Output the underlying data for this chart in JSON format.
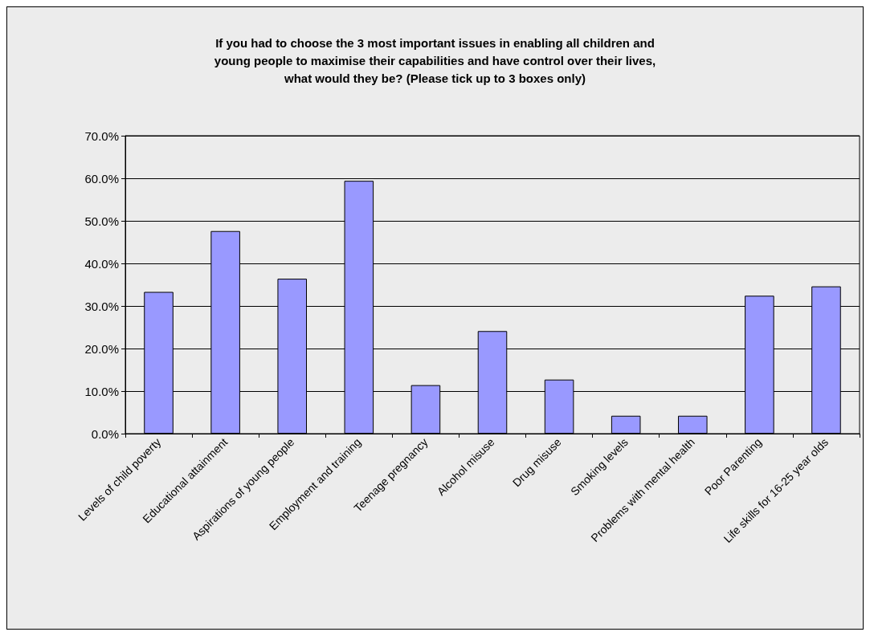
{
  "chart_data": {
    "type": "bar",
    "title": "If you had to choose the 3 most important issues in enabling all children and\nyoung people to maximise their capabilities and have control over their lives,\nwhat would they be? (Please tick up to 3 boxes only)",
    "categories": [
      "Levels of child poverty",
      "Educational attainment",
      "Aspirations of young people",
      "Employment and training",
      "Teenage pregnancy",
      "Alcohol misuse",
      "Drug misuse",
      "Smoking levels",
      "Problems with mental health",
      "Poor Parenting",
      "Life skills for 16-25 year olds"
    ],
    "values": [
      33.3,
      47.6,
      36.4,
      59.4,
      11.4,
      24.1,
      12.7,
      4.2,
      4.2,
      32.4,
      34.6
    ],
    "color": "#9999ff",
    "ylim": [
      0,
      70
    ],
    "yticks": [
      {
        "value": 0,
        "label": "0.0%"
      },
      {
        "value": 10,
        "label": "10.0%"
      },
      {
        "value": 20,
        "label": "20.0%"
      },
      {
        "value": 30,
        "label": "30.0%"
      },
      {
        "value": 40,
        "label": "40.0%"
      },
      {
        "value": 50,
        "label": "50.0%"
      },
      {
        "value": 60,
        "label": "60.0%"
      },
      {
        "value": 70,
        "label": "70.0%"
      }
    ],
    "grid": "y"
  }
}
